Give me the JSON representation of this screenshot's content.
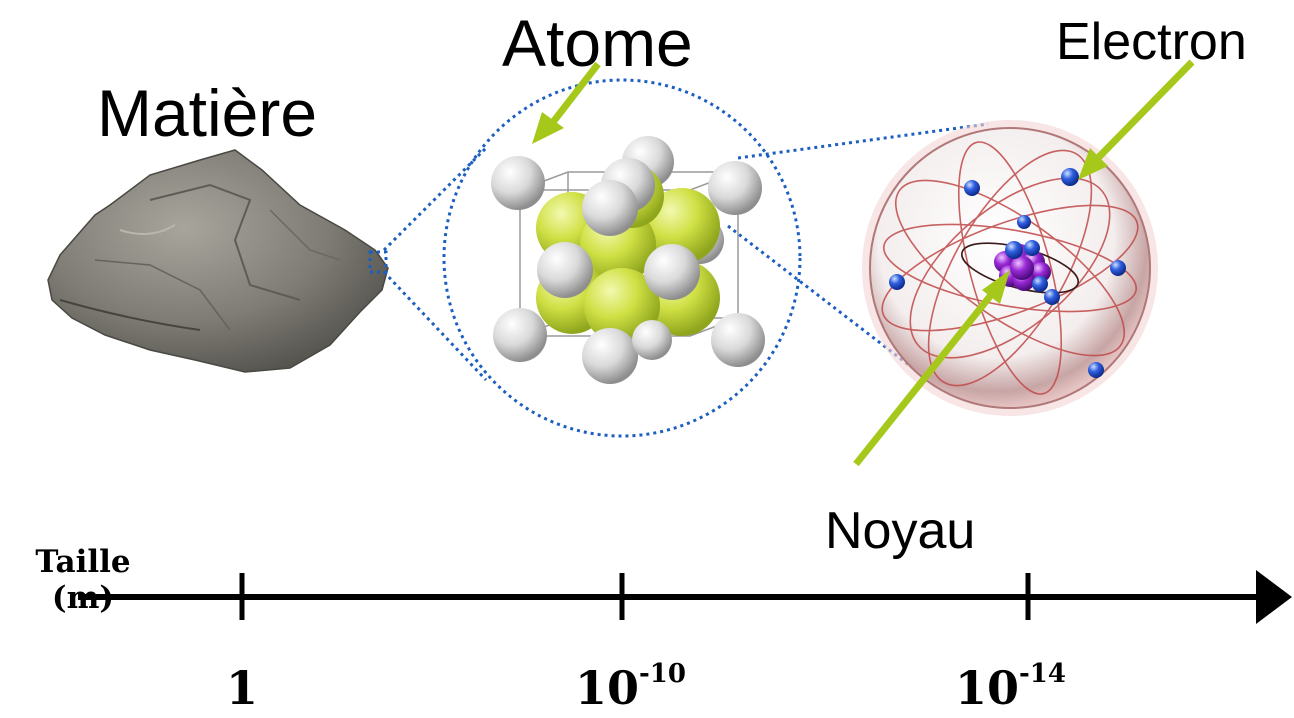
{
  "labels": {
    "matiere": "Matière",
    "atome": "Atome",
    "electron": "Electron",
    "noyau": "Noyau"
  },
  "axis": {
    "title_line1": "Taille",
    "title_line2": "(m)",
    "ticks": [
      {
        "base": "1",
        "exponent": ""
      },
      {
        "base": "10",
        "exponent": "-10"
      },
      {
        "base": "10",
        "exponent": "-14"
      }
    ]
  },
  "colors": {
    "arrow": "#a6c81a",
    "zoom_lines": "#1c5fc0",
    "halogen_atom": "#cfe044",
    "metal_atom": "#e2e2e2",
    "electron": "#2f5fe0",
    "nucleus": "#9a2ad8",
    "orbit": "#c04848"
  }
}
